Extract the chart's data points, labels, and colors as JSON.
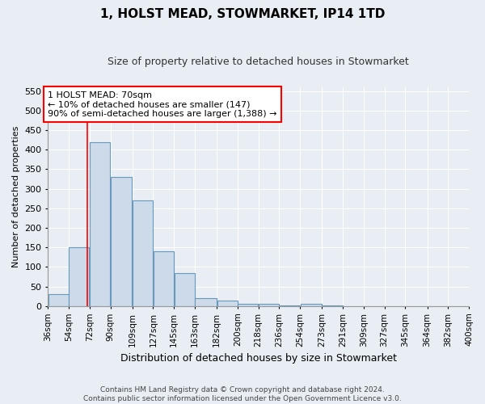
{
  "title": "1, HOLST MEAD, STOWMARKET, IP14 1TD",
  "subtitle": "Size of property relative to detached houses in Stowmarket",
  "xlabel": "Distribution of detached houses by size in Stowmarket",
  "ylabel": "Number of detached properties",
  "footer_line1": "Contains HM Land Registry data © Crown copyright and database right 2024.",
  "footer_line2": "Contains public sector information licensed under the Open Government Licence v3.0.",
  "annotation_line1": "1 HOLST MEAD: 70sqm",
  "annotation_line2": "← 10% of detached houses are smaller (147)",
  "annotation_line3": "90% of semi-detached houses are larger (1,388) →",
  "property_size": 70,
  "bar_color": "#ccdaea",
  "bar_edge_color": "#6699bb",
  "redline_color": "red",
  "annotation_box_color": "white",
  "annotation_box_edge_color": "red",
  "bins": [
    36,
    54,
    72,
    90,
    109,
    127,
    145,
    163,
    182,
    200,
    218,
    236,
    254,
    273,
    291,
    309,
    327,
    345,
    364,
    382,
    400
  ],
  "counts": [
    30,
    150,
    420,
    330,
    270,
    140,
    85,
    20,
    15,
    5,
    5,
    2,
    5,
    2,
    0,
    0,
    0,
    0,
    0,
    0
  ],
  "ylim": [
    0,
    560
  ],
  "yticks": [
    0,
    50,
    100,
    150,
    200,
    250,
    300,
    350,
    400,
    450,
    500,
    550
  ],
  "background_color": "#e8eef4",
  "plot_background_color": "#e8eef4",
  "grid_color": "white",
  "title_fontsize": 11,
  "subtitle_fontsize": 9,
  "tick_fontsize": 8,
  "ylabel_fontsize": 8,
  "xlabel_fontsize": 9
}
